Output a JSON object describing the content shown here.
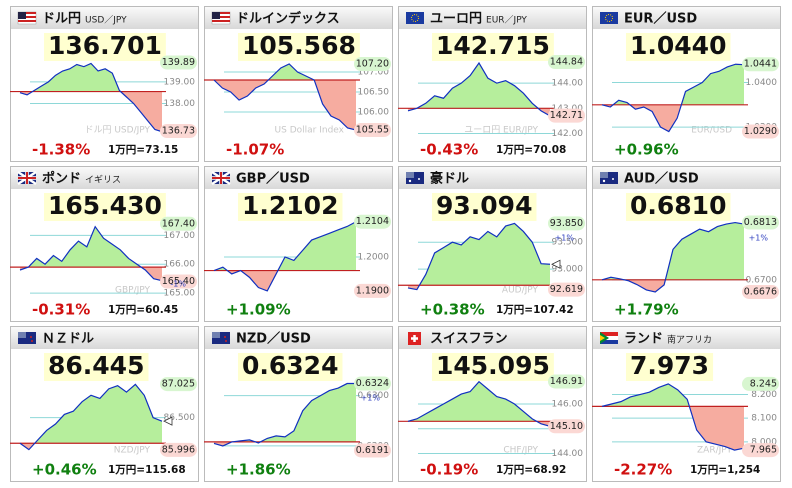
{
  "panels": [
    {
      "flag": "us",
      "title": "ドル円",
      "subtitle": "USD／JPY",
      "price": "136.701",
      "change": "-1.38%",
      "note": "1万円=73.15",
      "watermark": "ドル円 USD/JPY",
      "chart": {
        "type": "line",
        "values": [
          138.5,
          138.4,
          138.6,
          138.8,
          139.0,
          139.3,
          139.5,
          139.6,
          139.8,
          139.7,
          139.85,
          139.5,
          139.6,
          139.4,
          138.6,
          138.3,
          138.0,
          137.6,
          137.2,
          136.8,
          136.7
        ],
        "open": 138.55,
        "ylim": [
          136.5,
          140.1
        ],
        "yticks": [
          {
            "value": 139,
            "label": "139.00"
          },
          {
            "value": 138,
            "label": "138.00"
          }
        ],
        "high": 139.89,
        "low": 136.73
      }
    },
    {
      "flag": "us",
      "title": "ドルインデックス",
      "price": "105.568",
      "change": "-1.07%",
      "watermark": "US Dollar Index",
      "chart": {
        "type": "line",
        "values": [
          106.8,
          106.6,
          106.5,
          106.3,
          106.4,
          106.6,
          106.7,
          106.9,
          107.1,
          107.2,
          107.0,
          106.9,
          106.8,
          106.2,
          105.9,
          105.8,
          105.6,
          105.55
        ],
        "open": 106.8,
        "ylim": [
          105.4,
          107.35
        ],
        "yticks": [
          {
            "value": 107,
            "label": "107.00"
          },
          {
            "value": 106.5,
            "label": "106.50"
          },
          {
            "value": 106,
            "label": "106.00"
          }
        ],
        "high": {
          "value": 107.2,
          "label": "107.20"
        },
        "low": 105.55
      }
    },
    {
      "flag": "eu",
      "title": "ユーロ円",
      "subtitle": "EUR／JPY",
      "price": "142.715",
      "change": "-0.43%",
      "note": "1万円=70.08",
      "watermark": "ユーロ円 EUR/JPY",
      "chart": {
        "type": "line",
        "values": [
          142.9,
          143.0,
          143.2,
          143.5,
          143.4,
          143.8,
          144.0,
          144.3,
          144.8,
          144.2,
          144.0,
          144.1,
          143.9,
          143.6,
          143.2,
          142.9,
          142.7
        ],
        "open": 143.0,
        "ylim": [
          141.9,
          145.0
        ],
        "yticks": [
          {
            "value": 144,
            "label": "144.00"
          },
          {
            "value": 143,
            "label": "143.00"
          },
          {
            "value": 142,
            "label": "142.00"
          }
        ],
        "high": 144.84,
        "low": 142.71
      }
    },
    {
      "flag": "eu",
      "title": "EUR／USD",
      "price": "1.0440",
      "change": "+0.96%",
      "watermark": "EUR/USD",
      "chart": {
        "type": "line",
        "values": [
          1.035,
          1.0345,
          1.036,
          1.0355,
          1.034,
          1.0345,
          1.0335,
          1.03,
          1.029,
          1.032,
          1.038,
          1.039,
          1.04,
          1.042,
          1.0425,
          1.0435,
          1.0441,
          1.044
        ],
        "open": 1.035,
        "ylim": [
          1.028,
          1.0455
        ],
        "yticks": [
          {
            "value": 1.04,
            "label": "1.0400"
          },
          {
            "value": 1.03,
            "label": "1.0300"
          }
        ],
        "high": 1.0441,
        "low": {
          "value": 1.029,
          "label": "1.0290"
        }
      }
    },
    {
      "flag": "uk",
      "title": "ポンド",
      "subtitle": "イギリス",
      "price": "165.430",
      "change": "-0.31%",
      "note": "1万円=60.45",
      "watermark": "GBP/JPY",
      "band_label": "-1%",
      "chart": {
        "type": "line",
        "values": [
          165.8,
          165.9,
          166.2,
          166.0,
          166.3,
          166.1,
          166.5,
          166.8,
          166.6,
          167.3,
          166.9,
          166.7,
          166.5,
          166.2,
          166.0,
          165.8,
          165.5,
          165.43
        ],
        "open": 165.9,
        "ylim": [
          164.9,
          167.6
        ],
        "yticks": [
          {
            "value": 167,
            "label": "167.00"
          },
          {
            "value": 166,
            "label": "166.00"
          },
          {
            "value": 165,
            "label": "165.00"
          }
        ],
        "high": {
          "value": 167.4,
          "label": "167.40"
        },
        "low": {
          "value": 165.4,
          "label": "165.40"
        }
      }
    },
    {
      "flag": "uk",
      "title": "GBP／USD",
      "price": "1.2102",
      "change": "+1.09%",
      "chart": {
        "type": "line",
        "values": [
          1.196,
          1.197,
          1.195,
          1.196,
          1.194,
          1.191,
          1.19,
          1.195,
          1.2,
          1.199,
          1.202,
          1.205,
          1.206,
          1.207,
          1.208,
          1.209,
          1.2104
        ],
        "open": 1.196,
        "ylim": [
          1.1885,
          1.2115
        ],
        "yticks": [
          {
            "value": 1.2,
            "label": "1.2000"
          }
        ],
        "high": 1.2104,
        "low": {
          "value": 1.19,
          "label": "1.1900"
        }
      }
    },
    {
      "flag": "au",
      "title": "豪ドル",
      "price": "93.094",
      "change": "+0.38%",
      "note": "1万円=107.42",
      "watermark": "AUD/JPY",
      "band_label": "+1%",
      "chart": {
        "type": "line",
        "values": [
          92.65,
          92.62,
          92.9,
          93.3,
          93.4,
          93.5,
          93.45,
          93.6,
          93.55,
          93.7,
          93.6,
          93.8,
          93.85,
          93.7,
          93.5,
          93.1,
          93.09
        ],
        "open": 92.7,
        "ylim": [
          92.5,
          93.95
        ],
        "yticks": [
          {
            "value": 93.5,
            "label": "93.500"
          },
          {
            "value": 93,
            "label": "93.000"
          }
        ],
        "high": {
          "value": 93.85,
          "label": "93.850"
        },
        "low": 92.619
      }
    },
    {
      "flag": "au",
      "title": "AUD／USD",
      "price": "0.6810",
      "change": "+1.79%",
      "band_label": "+1%",
      "chart": {
        "type": "line",
        "values": [
          0.67,
          0.6705,
          0.6702,
          0.6698,
          0.669,
          0.668,
          0.6676,
          0.669,
          0.676,
          0.678,
          0.679,
          0.68,
          0.6795,
          0.6805,
          0.681,
          0.6813,
          0.681
        ],
        "open": 0.67,
        "ylim": [
          0.6668,
          0.6822
        ],
        "yticks": [
          {
            "value": 0.67,
            "label": "0.6700"
          }
        ],
        "high": 0.6813,
        "low": 0.6676
      }
    },
    {
      "flag": "nz",
      "title": "ＮＺドル",
      "price": "86.445",
      "change": "+0.46%",
      "note": "1万円=115.68",
      "watermark": "NZD/JPY",
      "chart": {
        "type": "line",
        "values": [
          86.1,
          86.0,
          86.15,
          86.3,
          86.4,
          86.55,
          86.6,
          86.75,
          86.85,
          86.8,
          86.95,
          87.0,
          86.9,
          87.02,
          86.85,
          86.5,
          86.445
        ],
        "open": 86.1,
        "ylim": [
          85.9,
          87.12
        ],
        "yticks": [
          {
            "value": 86.5,
            "label": "86.500"
          }
        ],
        "high": 87.025,
        "low": 85.996
      }
    },
    {
      "flag": "nz",
      "title": "NZD／USD",
      "price": "0.6324",
      "change": "+1.86%",
      "band_label": "+1%",
      "chart": {
        "type": "line",
        "values": [
          0.6205,
          0.62,
          0.6208,
          0.621,
          0.6212,
          0.6206,
          0.6215,
          0.622,
          0.6218,
          0.623,
          0.627,
          0.629,
          0.63,
          0.631,
          0.6315,
          0.6324,
          0.6324
        ],
        "open": 0.6208,
        "ylim": [
          0.618,
          0.6335
        ],
        "yticks": [
          {
            "value": 0.63,
            "label": "0.6300"
          },
          {
            "value": 0.62,
            "label": "0.6200"
          }
        ],
        "high": 0.6324,
        "low": 0.6191
      }
    },
    {
      "flag": "ch",
      "title": "スイスフラン",
      "price": "145.095",
      "change": "-0.19%",
      "note": "1万円=68.92",
      "watermark": "CHF/JPY",
      "chart": {
        "type": "line",
        "values": [
          145.3,
          145.4,
          145.6,
          145.8,
          146.0,
          146.2,
          146.4,
          146.5,
          146.9,
          146.6,
          146.3,
          146.2,
          146.0,
          145.7,
          145.4,
          145.2,
          145.1
        ],
        "open": 145.3,
        "ylim": [
          143.9,
          147.05
        ],
        "yticks": [
          {
            "value": 146,
            "label": "146.00"
          },
          {
            "value": 145,
            "label": "145.00"
          },
          {
            "value": 144,
            "label": "144.00"
          }
        ],
        "high": 146.91,
        "low": {
          "value": 145.1,
          "label": "145.10"
        }
      }
    },
    {
      "flag": "za",
      "title": "ランド",
      "subtitle": "南アフリカ",
      "price": "7.973",
      "change": "-2.27%",
      "note": "1万円=1,254",
      "watermark": "ZAR/JPY",
      "chart": {
        "type": "line",
        "values": [
          8.15,
          8.16,
          8.17,
          8.19,
          8.2,
          8.21,
          8.23,
          8.245,
          8.22,
          8.18,
          8.05,
          8.0,
          7.99,
          7.98,
          7.965,
          7.973
        ],
        "open": 8.15,
        "ylim": [
          7.94,
          8.27
        ],
        "yticks": [
          {
            "value": 8.2,
            "label": "8.200"
          },
          {
            "value": 8.1,
            "label": "8.100"
          },
          {
            "value": 8.0,
            "label": "8.000"
          }
        ],
        "high": 8.245,
        "low": 7.965
      }
    }
  ]
}
